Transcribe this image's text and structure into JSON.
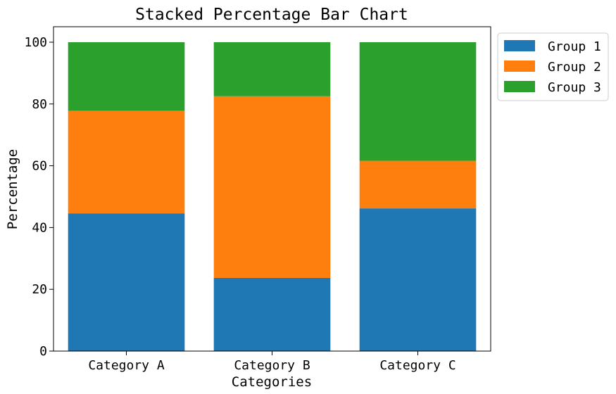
{
  "chart_data": {
    "type": "bar",
    "stacked": true,
    "title": "Stacked Percentage Bar Chart",
    "xlabel": "Categories",
    "ylabel": "Percentage",
    "categories": [
      "Category A",
      "Category B",
      "Category C"
    ],
    "ylim": [
      0,
      105
    ],
    "yticks": [
      0,
      20,
      40,
      60,
      80,
      100
    ],
    "ytick_labels": [
      "0",
      "20",
      "40",
      "60",
      "80",
      "100"
    ],
    "grid": false,
    "legend_position": "outside-top-right",
    "series": [
      {
        "name": "Group 1",
        "color": "#1f77b4",
        "values": [
          44.6,
          23.7,
          46.2
        ]
      },
      {
        "name": "Group 2",
        "color": "#ff7f0e",
        "values": [
          33.2,
          58.8,
          15.4
        ]
      },
      {
        "name": "Group 3",
        "color": "#2ca02c",
        "values": [
          22.2,
          17.5,
          38.4
        ]
      }
    ]
  }
}
